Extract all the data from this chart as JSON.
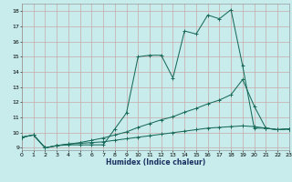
{
  "xlabel": "Humidex (Indice chaleur)",
  "background_color": "#c8ecec",
  "grid_color": "#c8a8a8",
  "line_color": "#1a6b5a",
  "xlim": [
    0,
    23
  ],
  "ylim": [
    8.85,
    18.5
  ],
  "xticks": [
    0,
    1,
    2,
    3,
    4,
    5,
    6,
    7,
    8,
    9,
    10,
    11,
    12,
    13,
    14,
    15,
    16,
    17,
    18,
    19,
    20,
    21,
    22,
    23
  ],
  "yticks": [
    9,
    10,
    11,
    12,
    13,
    14,
    15,
    16,
    17,
    18
  ],
  "curve1_x": [
    0,
    1,
    2,
    3,
    4,
    5,
    6,
    7,
    8,
    9,
    10,
    11,
    12,
    13,
    14,
    15,
    16,
    17,
    18,
    19,
    20,
    21,
    22,
    23
  ],
  "curve1_y": [
    9.7,
    9.85,
    9.0,
    9.15,
    9.2,
    9.2,
    9.2,
    9.2,
    10.25,
    11.3,
    15.0,
    15.1,
    15.1,
    13.6,
    16.7,
    16.5,
    17.75,
    17.5,
    18.1,
    14.4,
    10.3,
    10.3,
    10.2,
    10.25
  ],
  "curve2_x": [
    0,
    1,
    2,
    3,
    4,
    5,
    6,
    7,
    8,
    9,
    10,
    11,
    12,
    13,
    14,
    15,
    16,
    17,
    18,
    19,
    20,
    21,
    22,
    23
  ],
  "curve2_y": [
    9.7,
    9.85,
    9.0,
    9.15,
    9.25,
    9.35,
    9.5,
    9.65,
    9.85,
    10.05,
    10.35,
    10.6,
    10.85,
    11.05,
    11.35,
    11.6,
    11.9,
    12.15,
    12.5,
    13.5,
    11.75,
    10.3,
    10.2,
    10.25
  ],
  "curve3_x": [
    0,
    1,
    2,
    3,
    4,
    5,
    6,
    7,
    8,
    9,
    10,
    11,
    12,
    13,
    14,
    15,
    16,
    17,
    18,
    19,
    20,
    21,
    22,
    23
  ],
  "curve3_y": [
    9.7,
    9.85,
    9.0,
    9.15,
    9.25,
    9.3,
    9.35,
    9.4,
    9.5,
    9.6,
    9.7,
    9.8,
    9.9,
    10.0,
    10.1,
    10.2,
    10.3,
    10.35,
    10.4,
    10.45,
    10.4,
    10.3,
    10.2,
    10.25
  ]
}
